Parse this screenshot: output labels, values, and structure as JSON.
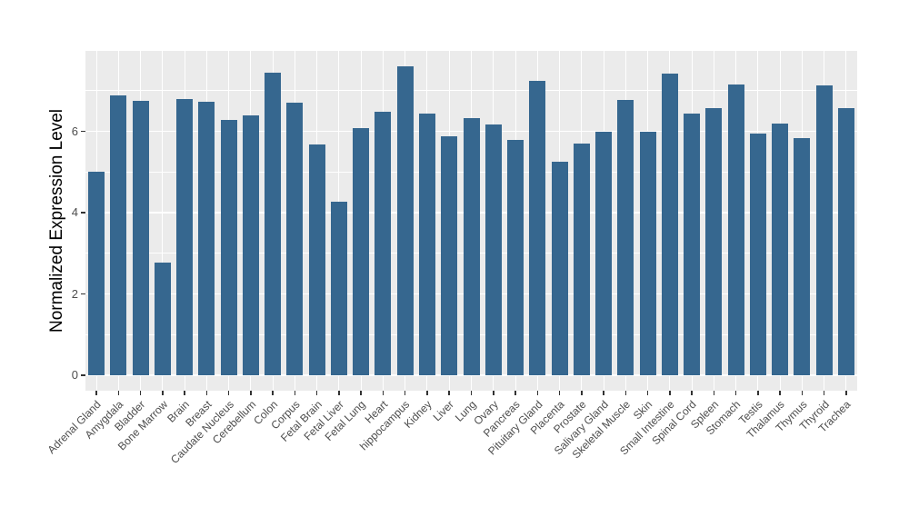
{
  "chart_data": {
    "type": "bar",
    "title": "",
    "xlabel": "",
    "ylabel": "Normalized Expression Level",
    "categories": [
      "Adrenal Gland",
      "Amygdala",
      "Bladder",
      "Bone Marrow",
      "Brain",
      "Breast",
      "Caudate Nucleus",
      "Cerebellum",
      "Colon",
      "Corpus",
      "Fetal Brain",
      "Fetal Liver",
      "Fetal Lung",
      "Heart",
      "hippocampus",
      "Kidney",
      "Liver",
      "Lung",
      "Ovary",
      "Pancreas",
      "Pituitary Gland",
      "Placenta",
      "Prostate",
      "Salivary Gland",
      "Skeletal Muscle",
      "Skin",
      "Small Intestine",
      "Spinal Cord",
      "Spleen",
      "Stomach",
      "Testis",
      "Thalamus",
      "Thymus",
      "Thyroid",
      "Trachea"
    ],
    "values": [
      5.0,
      6.88,
      6.75,
      2.76,
      6.8,
      6.72,
      6.28,
      6.38,
      7.44,
      6.7,
      5.68,
      4.27,
      6.07,
      6.48,
      7.59,
      6.44,
      5.88,
      6.33,
      6.16,
      5.78,
      7.23,
      5.26,
      5.7,
      6.0,
      6.78,
      5.99,
      7.41,
      6.44,
      6.56,
      7.15,
      5.94,
      6.2,
      5.83,
      7.13,
      6.56
    ],
    "yticks": [
      0,
      2,
      4,
      6
    ],
    "yticks_minor": [
      1,
      3,
      5,
      7
    ],
    "ylim": [
      0,
      8
    ],
    "grid": "horizontal major+minor and vertical category gridlines, white on gray panel",
    "legend": "none",
    "colors": {
      "bar_fill": "#36678F",
      "panel_background": "#EBEBEB",
      "gridline": "#FFFFFF",
      "tick_label": "#4D4D4D",
      "tick_mark": "#333333",
      "axis_title": "#000000",
      "figure_background": "#FFFFFF"
    }
  }
}
